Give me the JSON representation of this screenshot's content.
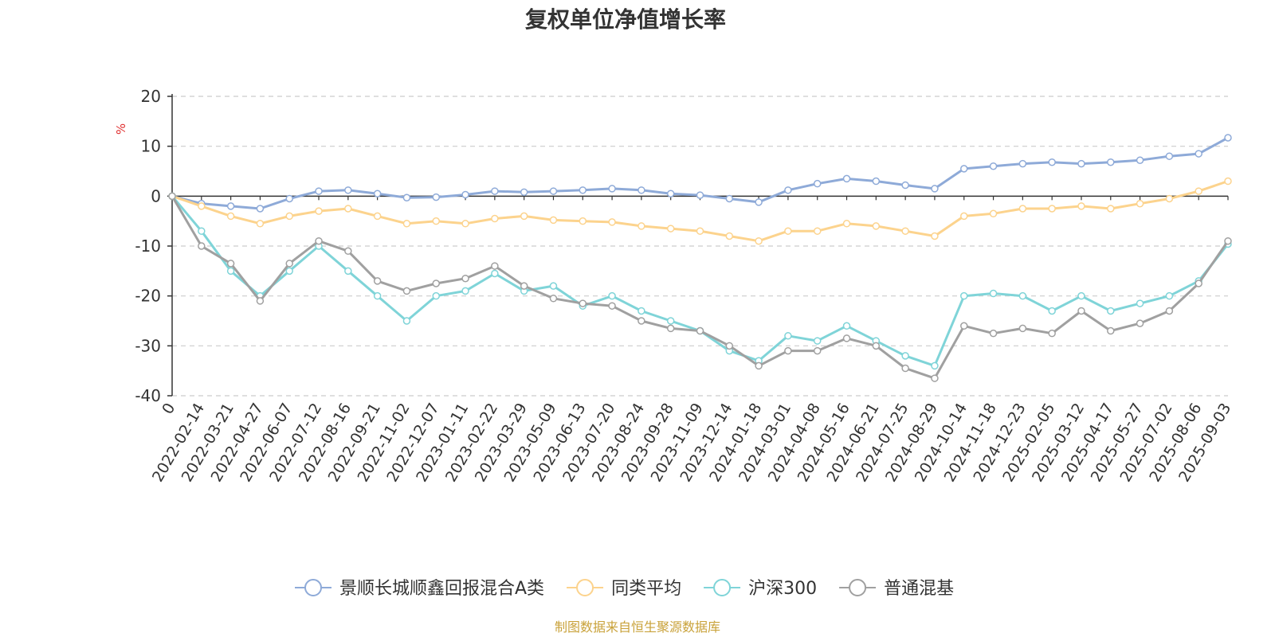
{
  "chart_data": {
    "type": "line",
    "title": "复权单位净值增长率",
    "ylabel": "%",
    "ylim": [
      -40,
      20
    ],
    "yticks": [
      20,
      10,
      0,
      -10,
      -20,
      -30,
      -40
    ],
    "grid": true,
    "legend_position": "bottom",
    "source": "制图数据来自恒生聚源数据库",
    "x_first_label": "0",
    "x": [
      "2022-02-14",
      "2022-03-21",
      "2022-04-27",
      "2022-06-07",
      "2022-07-12",
      "2022-08-16",
      "2022-09-21",
      "2022-11-02",
      "2022-12-07",
      "2023-01-11",
      "2023-02-22",
      "2023-03-29",
      "2023-05-09",
      "2023-06-13",
      "2023-07-20",
      "2023-08-24",
      "2023-09-28",
      "2023-11-09",
      "2023-12-14",
      "2024-01-18",
      "2024-03-01",
      "2024-04-08",
      "2024-05-16",
      "2024-06-21",
      "2024-07-25",
      "2024-08-29",
      "2024-10-14",
      "2024-11-18",
      "2024-12-23",
      "2025-02-05",
      "2025-03-12",
      "2025-04-17",
      "2025-05-27",
      "2025-07-02",
      "2025-08-06",
      "2025-09-03"
    ],
    "series": [
      {
        "name": "景顺长城顺鑫回报混合A类",
        "color": "#8eaad8",
        "start": 0,
        "values": [
          -1.5,
          -2.0,
          -2.5,
          -0.5,
          1.0,
          1.2,
          0.5,
          -0.3,
          -0.2,
          0.3,
          1.0,
          0.8,
          1.0,
          1.2,
          1.5,
          1.2,
          0.5,
          0.2,
          -0.5,
          -1.2,
          1.2,
          2.5,
          3.5,
          3.0,
          2.2,
          1.5,
          5.5,
          6.0,
          6.5,
          6.8,
          6.5,
          6.8,
          7.2,
          8.0,
          8.5,
          11.7
        ]
      },
      {
        "name": "同类平均",
        "color": "#fcd38d",
        "start": 0,
        "values": [
          -2.0,
          -4.0,
          -5.5,
          -4.0,
          -3.0,
          -2.5,
          -4.0,
          -5.5,
          -5.0,
          -5.5,
          -4.5,
          -4.0,
          -4.8,
          -5.0,
          -5.2,
          -6.0,
          -6.5,
          -7.0,
          -8.0,
          -9.0,
          -7.0,
          -7.0,
          -5.5,
          -6.0,
          -7.0,
          -8.0,
          -4.0,
          -3.5,
          -2.5,
          -2.5,
          -2.0,
          -2.5,
          -1.5,
          -0.5,
          1.0,
          3.0
        ]
      },
      {
        "name": "沪深300",
        "color": "#7fd4d8",
        "start": 0,
        "values": [
          -7.0,
          -15.0,
          -20.0,
          -15.0,
          -10.0,
          -15.0,
          -20.0,
          -25.0,
          -20.0,
          -19.0,
          -15.5,
          -19.0,
          -18.0,
          -22.0,
          -20.0,
          -23.0,
          -25.0,
          -27.0,
          -31.0,
          -33.0,
          -28.0,
          -29.0,
          -26.0,
          -29.0,
          -32.0,
          -34.0,
          -20.0,
          -19.5,
          -20.0,
          -23.0,
          -20.0,
          -23.0,
          -21.5,
          -20.0,
          -17.0,
          -9.6
        ]
      },
      {
        "name": "普通混基",
        "color": "#a0a0a0",
        "start": 0,
        "values": [
          -10.0,
          -13.5,
          -21.0,
          -13.5,
          -9.0,
          -11.0,
          -17.0,
          -19.0,
          -17.5,
          -16.5,
          -14.0,
          -18.0,
          -20.5,
          -21.5,
          -22.0,
          -25.0,
          -26.5,
          -27.0,
          -30.0,
          -34.0,
          -31.0,
          -31.0,
          -28.5,
          -30.0,
          -34.5,
          -36.5,
          -26.0,
          -27.5,
          -26.5,
          -27.5,
          -23.0,
          -27.0,
          -25.5,
          -23.0,
          -17.5,
          -9.0
        ]
      }
    ]
  }
}
